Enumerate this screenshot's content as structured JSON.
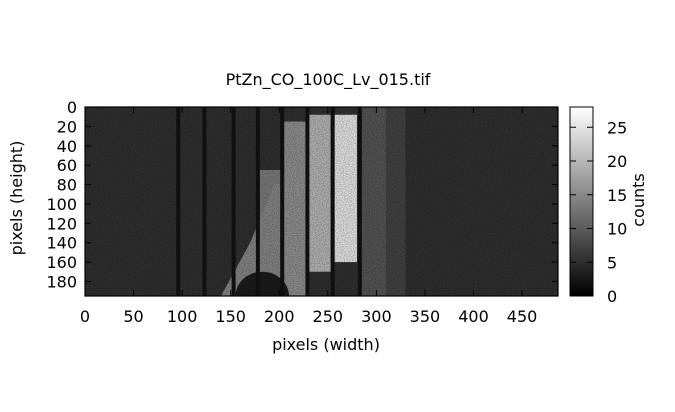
{
  "chart_data": {
    "type": "heatmap",
    "title": "PtZn_CO_100C_Lv_015.tif",
    "xlabel": "pixels (width)",
    "ylabel": "pixels (height)",
    "colorbar_label": "counts",
    "colormap": "grayscale (black = 0, white = max)",
    "xlim": [
      0,
      487
    ],
    "ylim": [
      0,
      195
    ],
    "y_inverted": true,
    "xticks": [
      0,
      50,
      100,
      150,
      200,
      250,
      300,
      350,
      400,
      450
    ],
    "yticks": [
      0,
      20,
      40,
      60,
      80,
      100,
      120,
      140,
      160,
      180
    ],
    "colorbar_range": [
      0,
      28
    ],
    "colorbar_ticks": [
      0,
      5,
      10,
      15,
      20,
      25
    ],
    "background_counts": 5,
    "regions": [
      {
        "name": "bright column",
        "x": [
          255,
          280
        ],
        "y": [
          8,
          160
        ],
        "counts": 24
      },
      {
        "name": "bright column",
        "x": [
          230,
          253
        ],
        "y": [
          8,
          170
        ],
        "counts": 19
      },
      {
        "name": "bright column",
        "x": [
          205,
          228
        ],
        "y": [
          15,
          195
        ],
        "counts": 15
      },
      {
        "name": "bright column",
        "x": [
          180,
          202
        ],
        "y": [
          65,
          195
        ],
        "counts": 13
      },
      {
        "name": "scattering wedge",
        "x": [
          140,
          205
        ],
        "y": [
          80,
          195
        ],
        "counts": 14
      },
      {
        "name": "dark shadow",
        "x": [
          155,
          210
        ],
        "y": [
          170,
          195
        ],
        "counts": 3
      },
      {
        "name": "faint column",
        "x": [
          283,
          310
        ],
        "y": [
          0,
          195
        ],
        "counts": 9
      },
      {
        "name": "faint column",
        "x": [
          310,
          330
        ],
        "y": [
          0,
          195
        ],
        "counts": 7
      }
    ],
    "dark_lines_x": [
      96,
      123,
      153,
      178,
      203,
      229,
      255,
      283
    ]
  }
}
